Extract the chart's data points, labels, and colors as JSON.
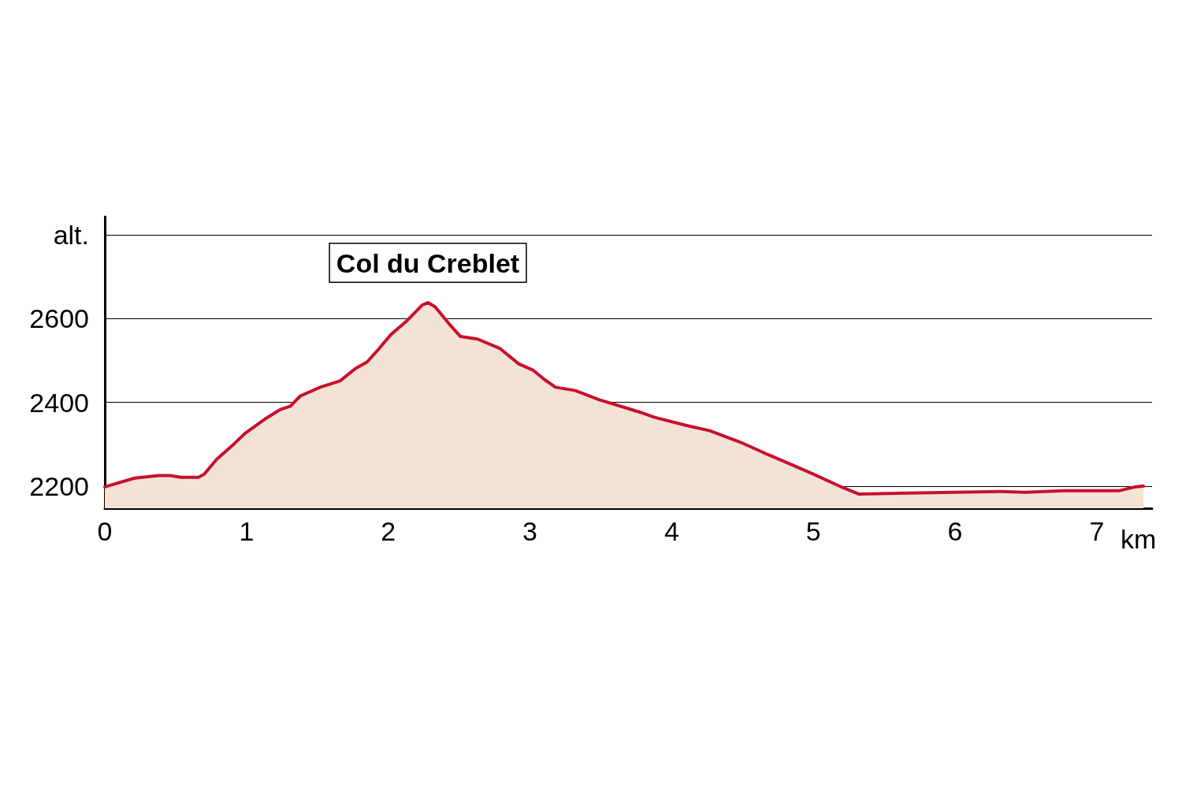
{
  "chart_data": {
    "type": "area",
    "xlabel": "km",
    "x": [
      0,
      0.21,
      0.38,
      0.46,
      0.54,
      0.66,
      0.7,
      0.79,
      0.91,
      0.99,
      1.13,
      1.24,
      1.31,
      1.38,
      1.52,
      1.66,
      1.77,
      1.85,
      1.93,
      2.02,
      2.13,
      2.24,
      2.28,
      2.33,
      2.43,
      2.51,
      2.63,
      2.79,
      2.92,
      3.02,
      3.1,
      3.18,
      3.32,
      3.49,
      3.77,
      3.88,
      4.1,
      4.27,
      4.49,
      4.68,
      4.82,
      4.99,
      5.21,
      5.32,
      5.66,
      6.32,
      6.49,
      6.77,
      7.16,
      7.27,
      7.33
    ],
    "series": [
      {
        "color": "#c8102e",
        "values": [
          2198,
          2219,
          2225,
          2225,
          2221,
          2221,
          2228,
          2264,
          2300,
          2326,
          2360,
          2383,
          2391,
          2415,
          2436,
          2451,
          2481,
          2496,
          2526,
          2562,
          2594,
          2632,
          2638,
          2628,
          2587,
          2557,
          2551,
          2528,
          2492,
          2477,
          2455,
          2436,
          2428,
          2406,
          2377,
          2364,
          2345,
          2332,
          2304,
          2275,
          2255,
          2230,
          2196,
          2181,
          2183,
          2187,
          2185,
          2189,
          2189,
          2198,
          2200
        ]
      }
    ],
    "xlim": [
      0,
      7.39
    ],
    "xticks": [
      0,
      1,
      2,
      3,
      4,
      5,
      6,
      7
    ],
    "ylim": [
      2147,
      2843
    ],
    "yticks": [
      2200,
      2400,
      2600,
      {
        "value": 2800,
        "label": "alt."
      }
    ],
    "grid": "y",
    "marker": "none",
    "line_style": "solid",
    "annotations": [
      {
        "text": "Col du Creblet",
        "x": 2.28,
        "y": 2638
      }
    ]
  }
}
